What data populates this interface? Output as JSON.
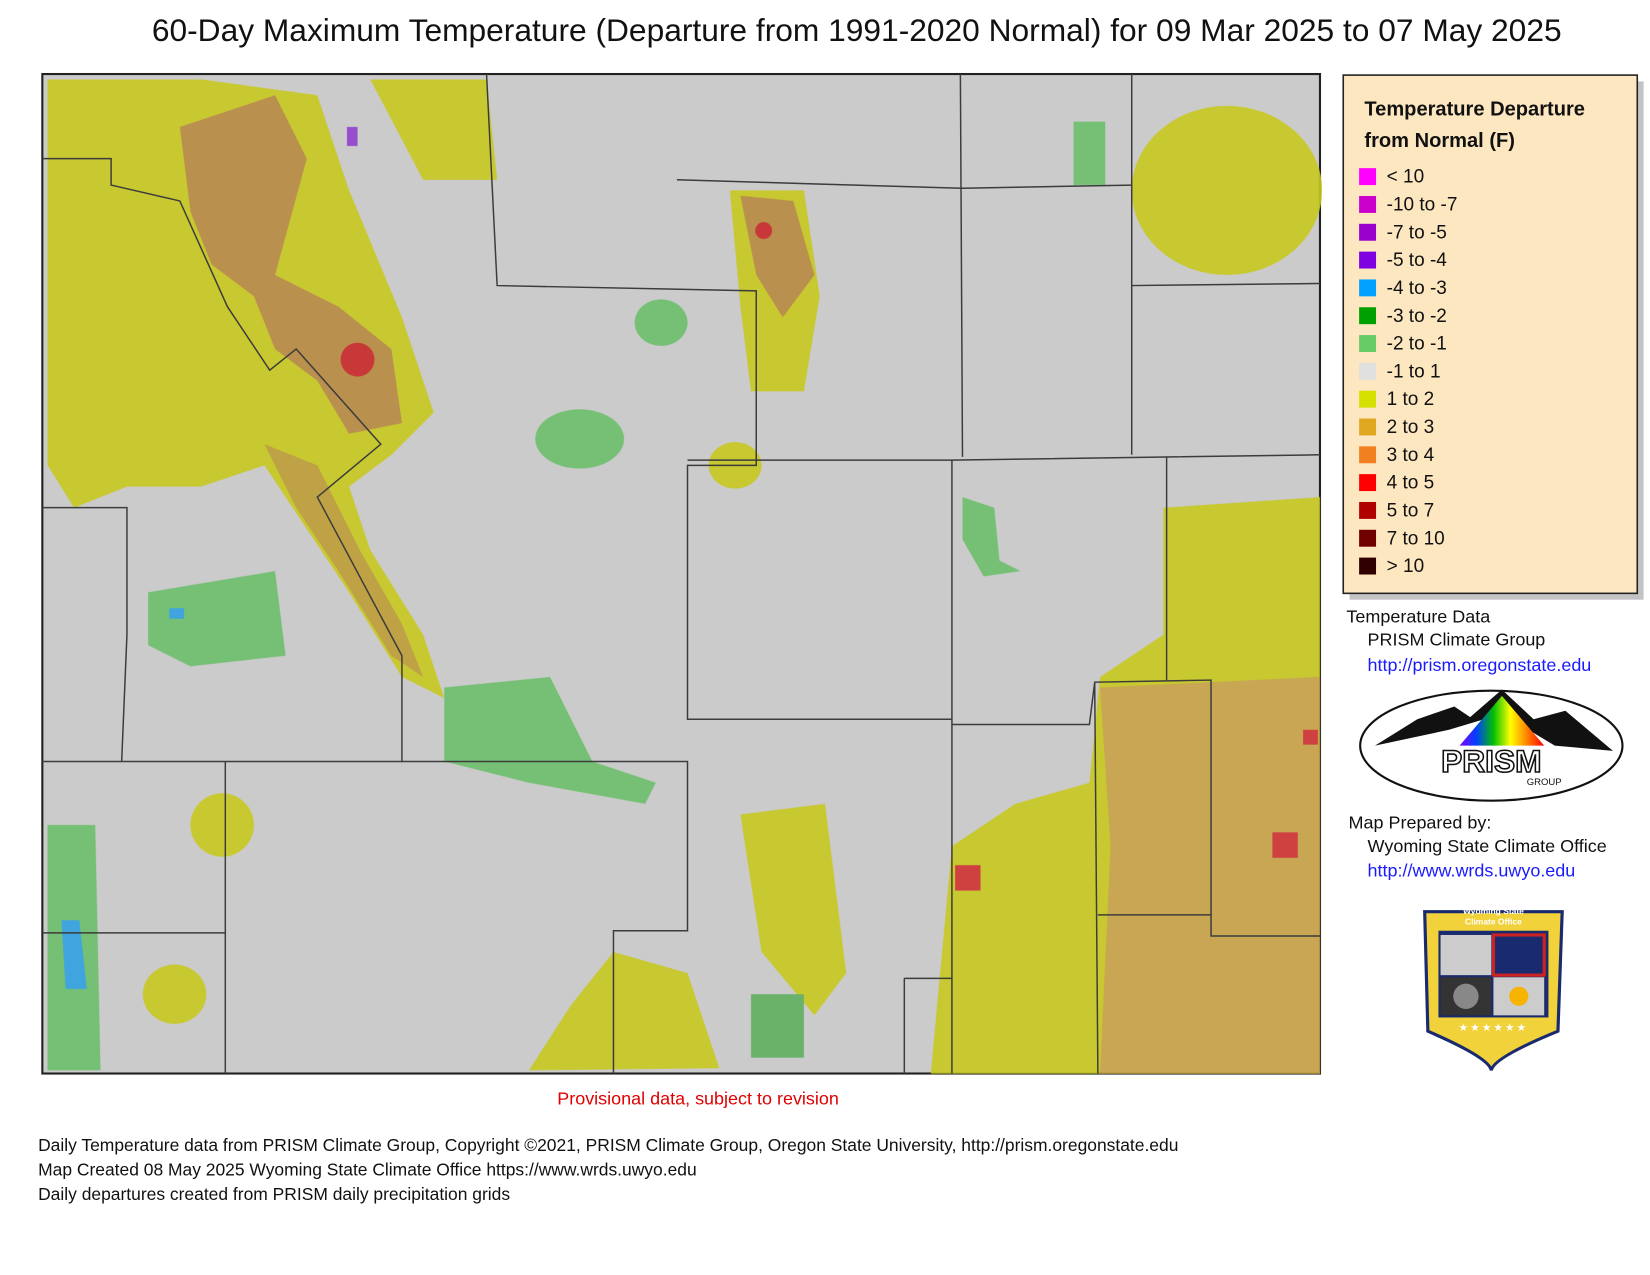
{
  "title": "60-Day Maximum Temperature (Departure from 1991-2020 Normal) for 09 Mar 2025 to 07 May 2025",
  "legend": {
    "title_lines": [
      "Temperature Departure",
      "from Normal (F)"
    ],
    "items": [
      {
        "label": "< 10",
        "color": "#ff00ff"
      },
      {
        "label": "-10 to -7",
        "color": "#cc00cc"
      },
      {
        "label": "-7 to -5",
        "color": "#9900cc"
      },
      {
        "label": "-5 to -4",
        "color": "#7f00e0"
      },
      {
        "label": "-4 to -3",
        "color": "#00a0ff"
      },
      {
        "label": "-3 to -2",
        "color": "#00a000"
      },
      {
        "label": "-2 to -1",
        "color": "#66cc66"
      },
      {
        "label": "-1 to 1",
        "color": "#e0e0e0"
      },
      {
        "label": "1 to 2",
        "color": "#d4e000"
      },
      {
        "label": "2 to 3",
        "color": "#e0a820"
      },
      {
        "label": "3 to 4",
        "color": "#f08020"
      },
      {
        "label": "4 to 5",
        "color": "#ff0000"
      },
      {
        "label": "5 to 7",
        "color": "#b00000"
      },
      {
        "label": "7 to 10",
        "color": "#700000"
      },
      {
        "label": "> 10",
        "color": "#300000"
      }
    ]
  },
  "credits": {
    "temperature_data": {
      "heading": "Temperature Data",
      "source": "PRISM Climate Group",
      "url": "http://prism.oregonstate.edu"
    },
    "prepared_by": {
      "heading": "Map Prepared by:",
      "source": "Wyoming State Climate Office",
      "url": "http://www.wrds.uwyo.edu"
    }
  },
  "logos": {
    "prism": {
      "name": "PRISM",
      "sub": "GROUP"
    },
    "wsco": {
      "lines": [
        "Wyoming State",
        "Climate Office"
      ]
    }
  },
  "note": "Provisional data, subject to revision",
  "footer": [
    "Daily Temperature data from PRISM Climate Group, Copyright ©2021, PRISM Climate Group, Oregon State University, http://prism.oregonstate.edu",
    "Map Created 08 May 2025 Wyoming State Climate Office https://www.wrds.uwyo.edu",
    "Daily departures created from PRISM daily precipitation grids"
  ]
}
